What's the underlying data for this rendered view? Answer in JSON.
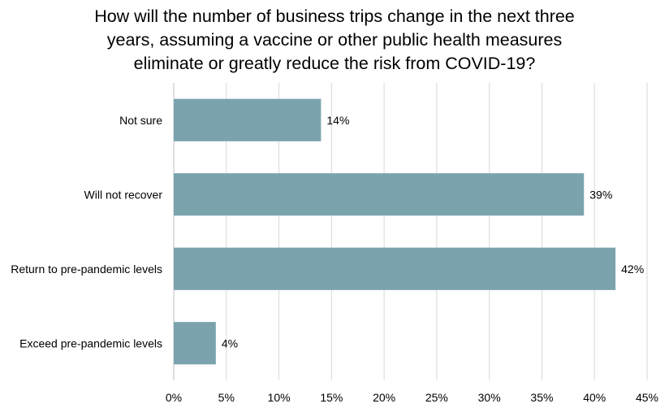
{
  "chart_data": {
    "type": "bar",
    "orientation": "horizontal",
    "title_lines": [
      "How will the number of business trips change in the next three",
      "years, assuming a vaccine or other public health measures",
      "eliminate or greatly reduce the risk from COVID-19?"
    ],
    "categories": [
      "Not sure",
      "Will not recover",
      "Return to pre-pandemic levels",
      "Exceed pre-pandemic levels"
    ],
    "values": [
      14,
      39,
      42,
      4
    ],
    "data_labels": [
      "14%",
      "39%",
      "42%",
      "4%"
    ],
    "xlim": [
      0,
      45
    ],
    "x_ticks": [
      0,
      5,
      10,
      15,
      20,
      25,
      30,
      35,
      40,
      45
    ],
    "x_tick_labels": [
      "0%",
      "5%",
      "10%",
      "15%",
      "20%",
      "25%",
      "30%",
      "35%",
      "40%",
      "45%"
    ],
    "xlabel": "",
    "ylabel": "",
    "grid": true,
    "legend": "none",
    "bar_color": "#7aa3ae"
  }
}
